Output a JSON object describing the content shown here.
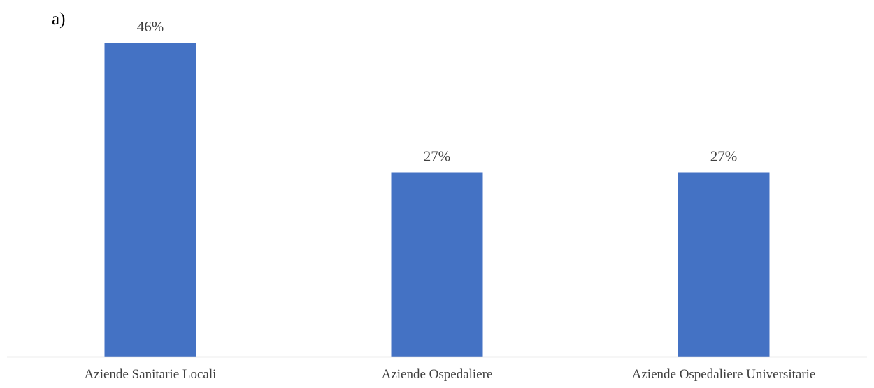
{
  "panel_label": "a)",
  "colors": {
    "bar": "#4472c4",
    "axis": "#d9d9d9",
    "text": "#404040"
  },
  "chart_data": {
    "type": "bar",
    "categories": [
      "Aziende Sanitarie Locali",
      "Aziende Ospedaliere",
      "Aziende Ospedaliere Universitarie"
    ],
    "values": [
      46,
      27,
      27
    ],
    "data_labels": [
      "46%",
      "27%",
      "27%"
    ],
    "unit": "%",
    "ylim": [
      0,
      46
    ],
    "grid": false,
    "legend": "none",
    "title": "",
    "xlabel": "",
    "ylabel": ""
  }
}
